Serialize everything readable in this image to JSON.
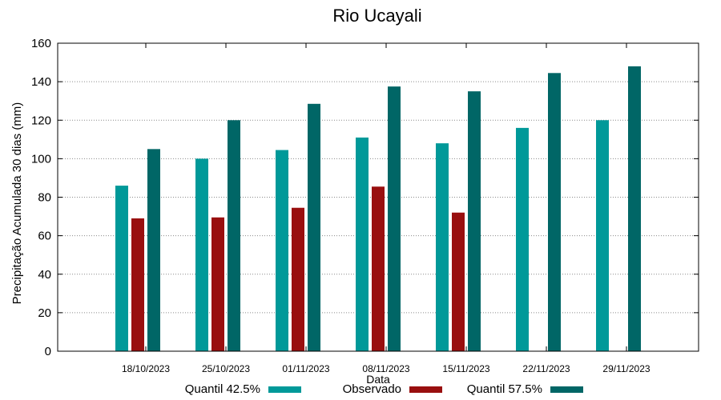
{
  "chart_data": {
    "type": "bar",
    "title": "Rio Ucayali",
    "xlabel": "Data",
    "ylabel": "Precipitação Acumulada 30 dias (mm)",
    "ylim": [
      0,
      160
    ],
    "yticks": [
      0,
      20,
      40,
      60,
      80,
      100,
      120,
      140,
      160
    ],
    "grid": true,
    "legend_position": "bottom",
    "categories": [
      "18/10/2023",
      "25/10/2023",
      "01/11/2023",
      "08/11/2023",
      "15/11/2023",
      "22/11/2023",
      "29/11/2023"
    ],
    "series": [
      {
        "name": "Quantil 42.5%",
        "color": "#009999",
        "values": [
          86,
          100,
          104.5,
          111,
          108,
          116,
          120
        ]
      },
      {
        "name": "Observado",
        "color": "#990f0f",
        "values": [
          69,
          69.5,
          74.5,
          85.5,
          72,
          null,
          null
        ]
      },
      {
        "name": "Quantil 57.5%",
        "color": "#006666",
        "values": [
          105,
          120,
          128.5,
          137.5,
          135,
          144.5,
          148
        ]
      }
    ]
  }
}
